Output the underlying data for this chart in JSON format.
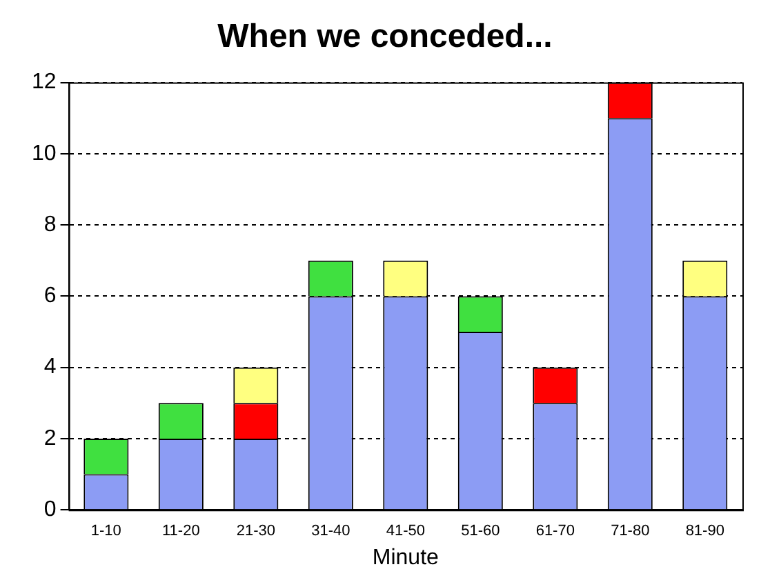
{
  "chart_data": {
    "type": "bar",
    "title": "When we conceded...",
    "xlabel": "Minute",
    "categories": [
      "1-10",
      "11-20",
      "21-30",
      "31-40",
      "41-50",
      "51-60",
      "61-70",
      "71-80",
      "81-90"
    ],
    "stacked": true,
    "series": [
      {
        "color": "#8c9cf4",
        "values": [
          1,
          2,
          2,
          6,
          6,
          5,
          3,
          11,
          6
        ]
      },
      {
        "color": "#40e040",
        "values": [
          1,
          1,
          0,
          1,
          0,
          1,
          0,
          0,
          0
        ]
      },
      {
        "color": "#ff0000",
        "values": [
          0,
          0,
          1,
          0,
          0,
          0,
          1,
          1,
          0
        ]
      },
      {
        "color": "#ffff80",
        "values": [
          0,
          0,
          1,
          0,
          1,
          0,
          0,
          0,
          1
        ]
      }
    ],
    "ylim": [
      0,
      12
    ],
    "yticks": [
      0,
      2,
      4,
      6,
      8,
      10,
      12
    ],
    "grid": "y",
    "legend": false
  }
}
